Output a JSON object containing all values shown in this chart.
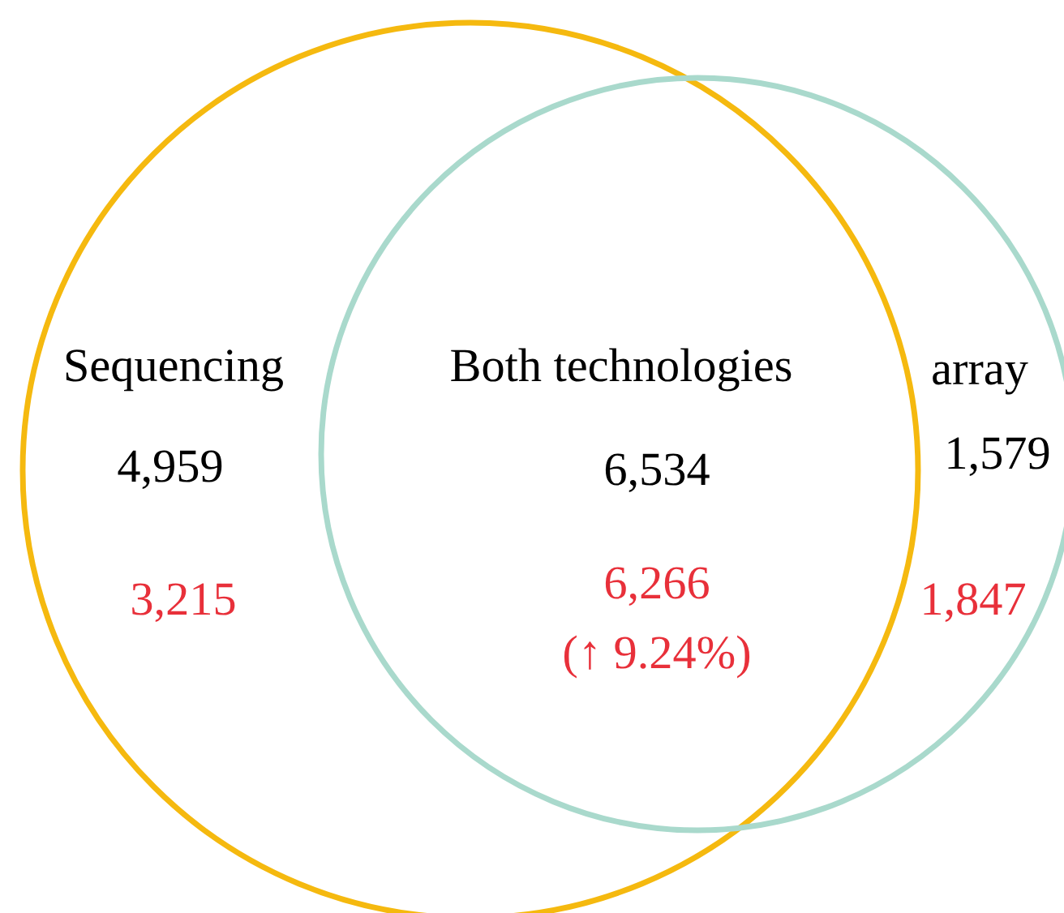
{
  "chart_data": {
    "type": "other",
    "categories": [
      "Sequencing",
      "Both technologies",
      "array"
    ],
    "colors": [
      "#f5b90f",
      "#a9d9cc"
    ],
    "series": [
      {
        "color": "#000000",
        "values": [
          4959,
          6534,
          1579
        ],
        "value_labels": [
          "4,959",
          "6,534",
          "1,579"
        ]
      },
      {
        "color": "#e8303a",
        "values": [
          3215,
          6266,
          1847
        ],
        "value_labels": [
          "3,215",
          "6,266",
          "1,847"
        ]
      }
    ],
    "data_labels": true,
    "annotations": [
      "(↑ 9.24%)"
    ]
  }
}
